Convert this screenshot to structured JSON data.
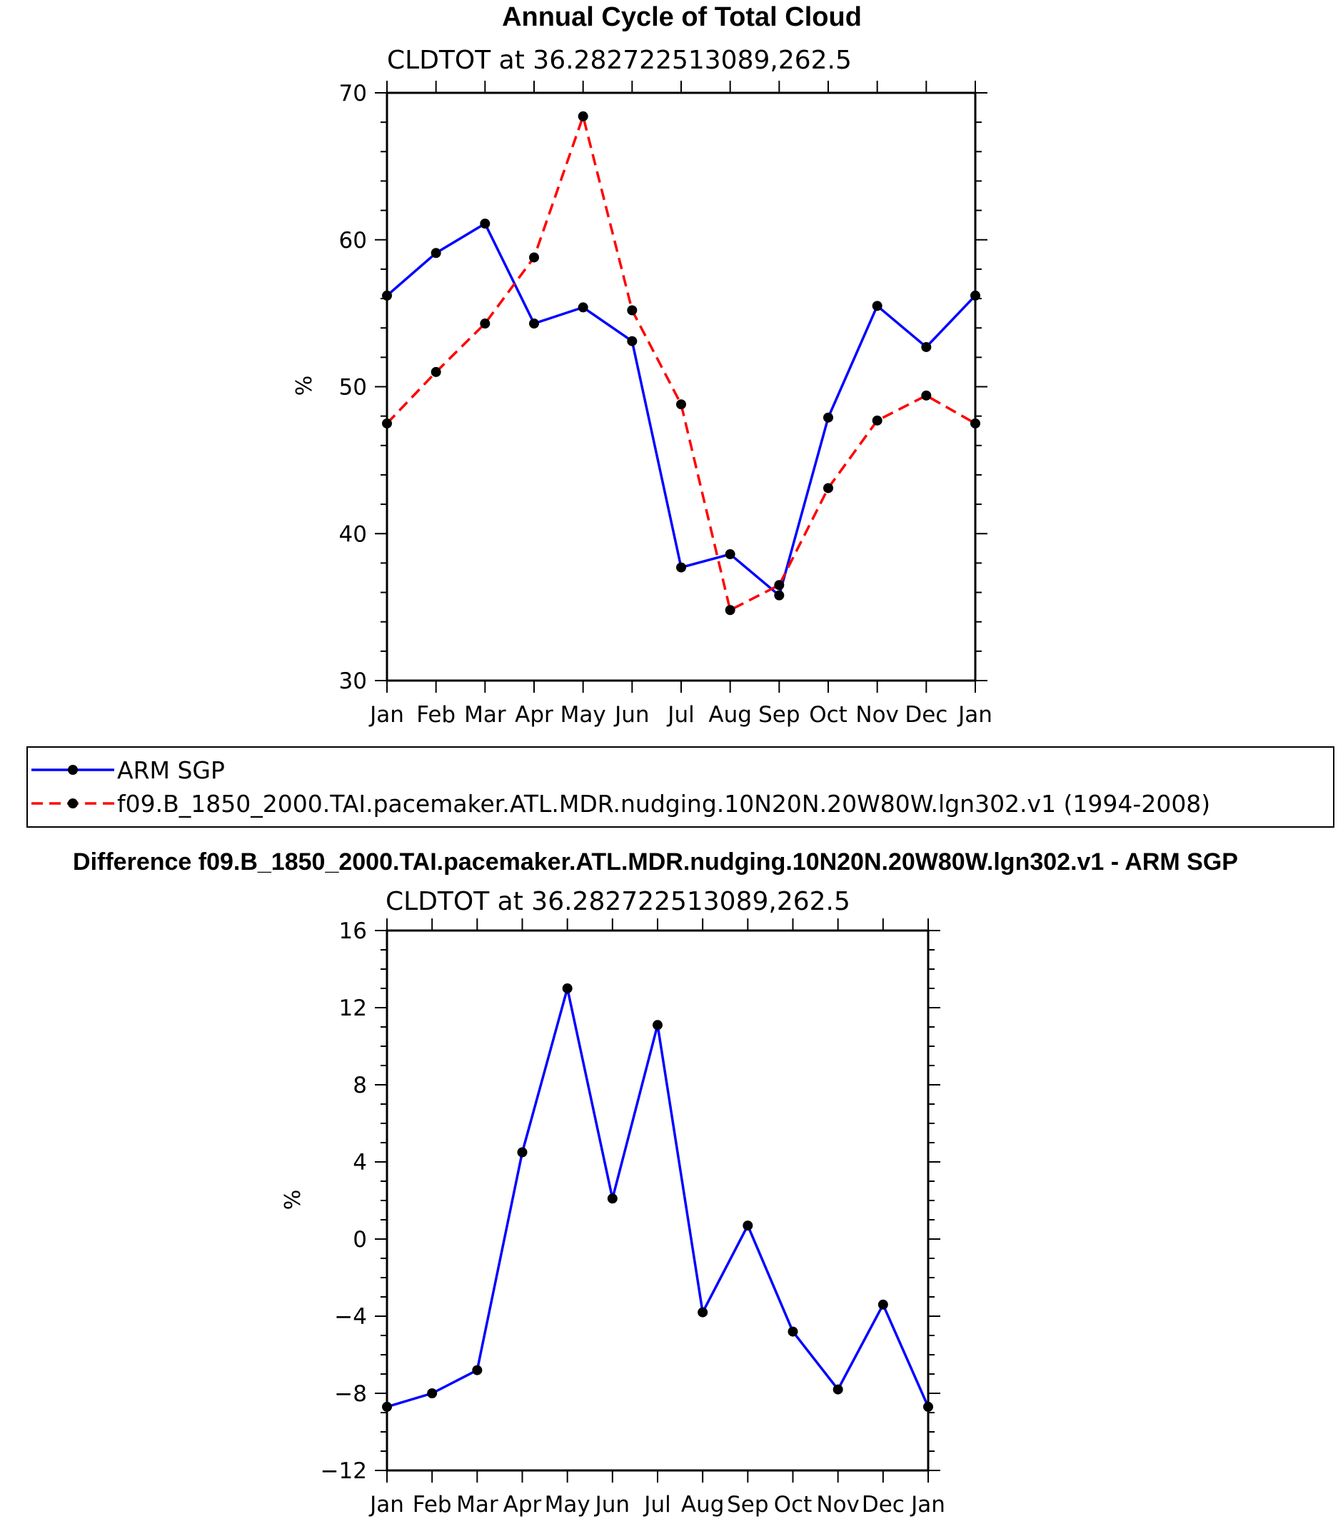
{
  "chart_data": [
    {
      "type": "line",
      "title": "Annual Cycle of Total Cloud",
      "subtitle": "CLDTOT at 36.282722513089,262.5",
      "xlabel": "",
      "ylabel": "%",
      "categories": [
        "Jan",
        "Feb",
        "Mar",
        "Apr",
        "May",
        "Jun",
        "Jul",
        "Aug",
        "Sep",
        "Oct",
        "Nov",
        "Dec",
        "Jan"
      ],
      "ylim": [
        30,
        70
      ],
      "yticks": [
        30,
        40,
        50,
        60,
        70
      ],
      "grid": false,
      "legend_position": "below",
      "series": [
        {
          "name": "ARM SGP",
          "color": "#0000ff",
          "dash": "solid",
          "values": [
            56.2,
            59.1,
            61.1,
            54.3,
            55.4,
            53.1,
            37.7,
            38.6,
            35.8,
            47.9,
            55.5,
            52.7,
            56.2
          ]
        },
        {
          "name": "f09.B_1850_2000.TAI.pacemaker.ATL.MDR.nudging.10N20N.20W80W.lgn302.v1 (1994-2008)",
          "color": "#ff0000",
          "dash": "dashed",
          "values": [
            47.5,
            51.0,
            54.3,
            58.8,
            68.4,
            55.2,
            48.8,
            34.8,
            36.5,
            43.1,
            47.7,
            49.4,
            47.5
          ]
        }
      ]
    },
    {
      "type": "line",
      "title": "Difference f09.B_1850_2000.TAI.pacemaker.ATL.MDR.nudging.10N20N.20W80W.lgn302.v1 - ARM SGP",
      "subtitle": "CLDTOT at 36.282722513089,262.5",
      "xlabel": "",
      "ylabel": "%",
      "categories": [
        "Jan",
        "Feb",
        "Mar",
        "Apr",
        "May",
        "Jun",
        "Jul",
        "Aug",
        "Sep",
        "Oct",
        "Nov",
        "Dec",
        "Jan"
      ],
      "ylim": [
        -12,
        16
      ],
      "yticks": [
        -12,
        -8,
        -4,
        0,
        4,
        8,
        12,
        16
      ],
      "grid": false,
      "series": [
        {
          "color": "#0000ff",
          "dash": "solid",
          "values": [
            -8.7,
            -8.0,
            -6.8,
            4.5,
            13.0,
            2.1,
            11.1,
            -3.8,
            0.7,
            -4.8,
            -7.8,
            -3.4,
            -8.7
          ]
        }
      ]
    }
  ]
}
